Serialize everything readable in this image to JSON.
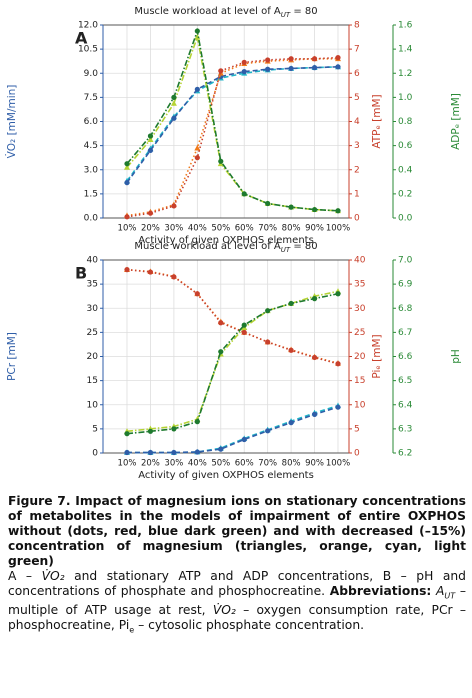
{
  "chart_data": [
    {
      "type": "line",
      "panel": "A",
      "title": [
        "Muscle workload at level of A",
        "UT",
        " = 80"
      ],
      "xlabel": "Activity of given OXPHOS elements",
      "categories": [
        "10%",
        "20%",
        "30%",
        "40%",
        "50%",
        "60%",
        "70%",
        "80%",
        "90%",
        "100%"
      ],
      "ylabel": "V̇O₂ [mM/min]",
      "ycolor": "#2f5ea8",
      "ylim": [
        0,
        12
      ],
      "yticks": [
        {
          "value": 0,
          "label": "0.0"
        },
        1.5,
        {
          "value": 3,
          "label": "3.0"
        },
        4.5,
        {
          "value": 6,
          "label": "6.0"
        },
        7.5,
        {
          "value": 9,
          "label": "9.0"
        },
        10.5,
        {
          "value": 12,
          "label": "12.0"
        }
      ],
      "y2label": "ATPₑ [mM]",
      "y2color": "#c8402c",
      "y2lim": [
        0,
        8
      ],
      "y2ticks": [
        0,
        1,
        2,
        3,
        4,
        5,
        6,
        7,
        8
      ],
      "y3label": "ADPₑ [mM]",
      "y3color": "#2a8a36",
      "y3lim": [
        0,
        1.6
      ],
      "y3ticks": [
        {
          "value": 0,
          "label": "0.0"
        },
        0.2,
        0.4,
        0.6,
        0.8,
        {
          "value": 1,
          "label": "1.0"
        },
        1.2,
        1.4,
        1.6
      ],
      "grid": true,
      "series": [
        {
          "color": "#1fb4c8",
          "marker": "^",
          "linestyle": "--",
          "axis": "y",
          "values": [
            2.3,
            4.3,
            6.3,
            7.9,
            8.7,
            9.0,
            9.2,
            9.3,
            9.35,
            9.4
          ]
        },
        {
          "color": "#2f5ea8",
          "marker": "o",
          "linestyle": "--",
          "axis": "y",
          "values": [
            2.2,
            4.2,
            6.2,
            8.0,
            8.8,
            9.1,
            9.25,
            9.3,
            9.35,
            9.4
          ]
        },
        {
          "color": "#f07a1a",
          "marker": "^",
          "linestyle": ":",
          "axis": "y2",
          "values": [
            0.1,
            0.25,
            0.55,
            2.9,
            6.0,
            6.4,
            6.5,
            6.55,
            6.6,
            6.6
          ]
        },
        {
          "color": "#c8402c",
          "marker": "o",
          "linestyle": ":",
          "axis": "y2",
          "values": [
            0.05,
            0.2,
            0.5,
            2.5,
            6.1,
            6.45,
            6.55,
            6.6,
            6.6,
            6.65
          ]
        },
        {
          "color": "#b5d334",
          "marker": "^",
          "linestyle": "-.",
          "axis": "y3",
          "values": [
            0.42,
            0.65,
            0.95,
            1.5,
            0.45,
            0.2,
            0.12,
            0.09,
            0.07,
            0.06
          ]
        },
        {
          "color": "#1e7a2e",
          "marker": "o",
          "linestyle": "-.",
          "axis": "y3",
          "values": [
            0.45,
            0.68,
            1.0,
            1.55,
            0.47,
            0.2,
            0.12,
            0.09,
            0.07,
            0.06
          ]
        }
      ]
    },
    {
      "type": "line",
      "panel": "B",
      "title": [
        "Muscle workload at level of A",
        "UT",
        " = 80"
      ],
      "xlabel": "Activity of given OXPHOS elements",
      "categories": [
        "10%",
        "20%",
        "30%",
        "40%",
        "50%",
        "60%",
        "70%",
        "80%",
        "90%",
        "100%"
      ],
      "ylabel": "PCr [mM]",
      "ycolor": "#2f5ea8",
      "ylim": [
        0,
        40
      ],
      "yticks": [
        0,
        5,
        10,
        15,
        20,
        25,
        30,
        35,
        40
      ],
      "y2label": "Piₑ [mM]",
      "y2color": "#c8402c",
      "y2lim": [
        0,
        40
      ],
      "y2ticks": [
        0,
        5,
        10,
        15,
        20,
        25,
        30,
        35,
        40
      ],
      "y3label": "pH",
      "y3color": "#2a8a36",
      "y3lim": [
        6.2,
        7.0
      ],
      "y3ticks": [
        6.2,
        6.3,
        6.4,
        6.5,
        6.6,
        6.7,
        6.8,
        6.9,
        {
          "value": 7,
          "label": "7.0"
        }
      ],
      "grid": true,
      "series": [
        {
          "color": "#1fb4c8",
          "marker": "^",
          "linestyle": "--",
          "axis": "y",
          "values": [
            0.1,
            0.1,
            0.1,
            0.2,
            1.0,
            3.0,
            4.8,
            6.6,
            8.3,
            9.8
          ]
        },
        {
          "color": "#2f5ea8",
          "marker": "o",
          "linestyle": "--",
          "axis": "y",
          "values": [
            0.1,
            0.1,
            0.1,
            0.2,
            0.8,
            2.8,
            4.6,
            6.3,
            8.0,
            9.5
          ]
        },
        {
          "color": "#f07a1a",
          "marker": "^",
          "linestyle": ":",
          "axis": "y2",
          "values": [
            38,
            37.6,
            36.6,
            33,
            27.2,
            25,
            23,
            21.4,
            19.9,
            18.6
          ]
        },
        {
          "color": "#c8402c",
          "marker": "o",
          "linestyle": ":",
          "axis": "y2",
          "values": [
            38,
            37.5,
            36.5,
            33,
            27,
            25,
            23,
            21.3,
            19.8,
            18.5
          ]
        },
        {
          "color": "#b5d334",
          "marker": "^",
          "linestyle": "-.",
          "axis": "y3",
          "values": [
            6.29,
            6.3,
            6.31,
            6.34,
            6.61,
            6.72,
            6.79,
            6.82,
            6.85,
            6.87
          ]
        },
        {
          "color": "#1e7a2e",
          "marker": "o",
          "linestyle": "-.",
          "axis": "y3",
          "values": [
            6.28,
            6.29,
            6.3,
            6.33,
            6.62,
            6.73,
            6.79,
            6.82,
            6.84,
            6.86
          ]
        }
      ]
    }
  ],
  "caption": {
    "title": "Figure 7. Impact of magnesium ions on stationary concentrations of metabolites in the models of impairment of entire OXPHOS without (dots, red, blue dark green) and with decreased (–15%) concentration of magnesium (triangles, orange, cyan, light green)",
    "body": [
      "A – ",
      "V̇O₂",
      " and stationary ATP and ADP concentrations, B – pH and concentrations of phosphate and phosphocreatine. ",
      "Abbreviations:",
      " ",
      "A",
      "UT",
      " – multiple of ATP usage at rest, ",
      "V̇O₂",
      " – oxygen consumption rate, PCr – phosphocreatine, Pi",
      "e",
      " – cytosolic phosphate concentration."
    ]
  }
}
